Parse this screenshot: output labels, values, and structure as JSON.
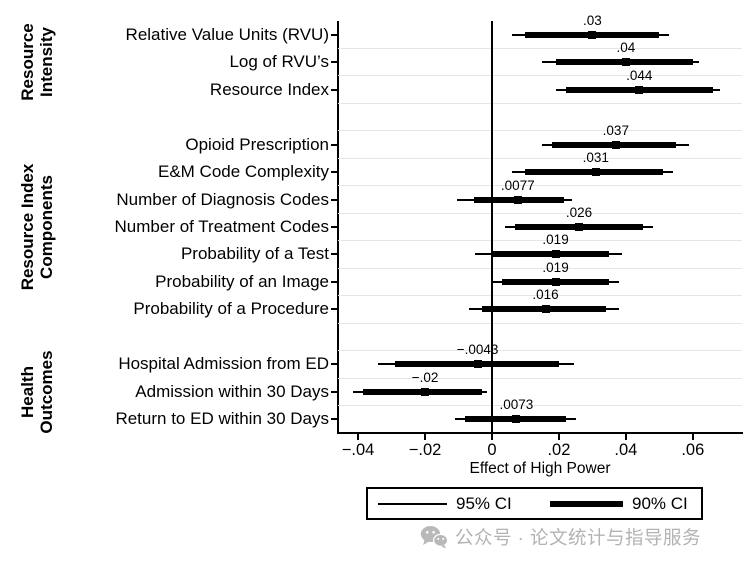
{
  "chart_data": {
    "type": "forest",
    "title": "",
    "xlabel": "Effect of High Power",
    "x_range": [
      -0.046,
      0.0747
    ],
    "x_ticks": [
      {
        "value": -0.04,
        "label": "−.04"
      },
      {
        "value": -0.02,
        "label": "−.02"
      },
      {
        "value": 0,
        "label": "0"
      },
      {
        "value": 0.02,
        "label": ".02"
      },
      {
        "value": 0.04,
        "label": ".04"
      },
      {
        "value": 0.06,
        "label": ".06"
      }
    ],
    "slots": 15,
    "grid": "between-rows",
    "groups": [
      {
        "lines": [
          "Resource",
          "Intensity"
        ],
        "slot_start": 0,
        "slot_end": 2
      },
      {
        "lines": [
          "Resource Index",
          "Components"
        ],
        "slot_start": 4,
        "slot_end": 10
      },
      {
        "lines": [
          "Health",
          "Outcomes"
        ],
        "slot_start": 12,
        "slot_end": 14
      }
    ],
    "rows": [
      {
        "label": "Relative Value Units (RVU)",
        "slot": 0,
        "estimate": 0.03,
        "estimate_label": ".03",
        "ci95": [
          0.006,
          0.053
        ],
        "ci90": [
          0.01,
          0.05
        ]
      },
      {
        "label": "Log of RVU’s",
        "slot": 1,
        "estimate": 0.04,
        "estimate_label": ".04",
        "ci95": [
          0.015,
          0.062
        ],
        "ci90": [
          0.019,
          0.06
        ]
      },
      {
        "label": "Resource Index",
        "slot": 2,
        "estimate": 0.044,
        "estimate_label": ".044",
        "ci95": [
          0.019,
          0.068
        ],
        "ci90": [
          0.022,
          0.066
        ]
      },
      {
        "label": "Opioid Prescription",
        "slot": 4,
        "estimate": 0.037,
        "estimate_label": ".037",
        "ci95": [
          0.015,
          0.059
        ],
        "ci90": [
          0.018,
          0.055
        ]
      },
      {
        "label": "E&M Code Complexity",
        "slot": 5,
        "estimate": 0.031,
        "estimate_label": ".031",
        "ci95": [
          0.006,
          0.054
        ],
        "ci90": [
          0.01,
          0.051
        ]
      },
      {
        "label": "Number of Diagnosis Codes",
        "slot": 6,
        "estimate": 0.0077,
        "estimate_label": ".0077",
        "ci95": [
          -0.0105,
          0.024
        ],
        "ci90": [
          -0.0055,
          0.0215
        ]
      },
      {
        "label": "Number of Treatment Codes",
        "slot": 7,
        "estimate": 0.026,
        "estimate_label": ".026",
        "ci95": [
          0.004,
          0.048
        ],
        "ci90": [
          0.007,
          0.045
        ]
      },
      {
        "label": "Probability of a Test",
        "slot": 8,
        "estimate": 0.019,
        "estimate_label": ".019",
        "ci95": [
          -0.005,
          0.039
        ],
        "ci90": [
          0.0,
          0.035
        ]
      },
      {
        "label": "Probability of an Image",
        "slot": 9,
        "estimate": 0.019,
        "estimate_label": ".019",
        "ci95": [
          0.0,
          0.038
        ],
        "ci90": [
          0.003,
          0.035
        ]
      },
      {
        "label": "Probability of a Procedure",
        "slot": 10,
        "estimate": 0.016,
        "estimate_label": ".016",
        "ci95": [
          -0.007,
          0.038
        ],
        "ci90": [
          -0.003,
          0.034
        ]
      },
      {
        "label": "Hospital Admission from ED",
        "slot": 12,
        "estimate": -0.0043,
        "estimate_label": "−.0043",
        "ci95": [
          -0.034,
          0.0245
        ],
        "ci90": [
          -0.029,
          0.02
        ]
      },
      {
        "label": "Admission within 30 Days",
        "slot": 13,
        "estimate": -0.02,
        "estimate_label": "−.02",
        "ci95": [
          -0.0415,
          -0.0015
        ],
        "ci90": [
          -0.0385,
          -0.003
        ]
      },
      {
        "label": "Return to ED within 30 Days",
        "slot": 14,
        "estimate": 0.0073,
        "estimate_label": ".0073",
        "ci95": [
          -0.011,
          0.025
        ],
        "ci90": [
          -0.008,
          0.022
        ]
      }
    ],
    "legend": {
      "position": "bottom",
      "items": [
        {
          "label": "95% CI",
          "style": "thin"
        },
        {
          "label": "90% CI",
          "style": "thick"
        }
      ]
    },
    "colors": {
      "series": "#000000",
      "gridline": "#e6e6e6",
      "axis": "#000000",
      "watermark": "#b3b3b3"
    }
  },
  "watermark": {
    "icon": "wechat-icon",
    "text": "公众号 · 论文统计与指导服务"
  }
}
